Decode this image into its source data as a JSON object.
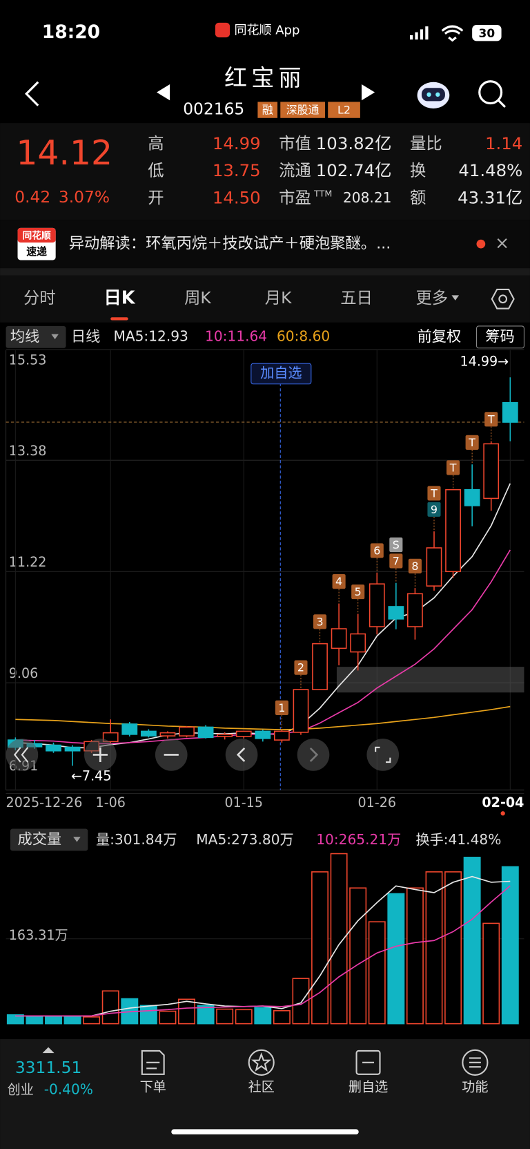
{
  "status": {
    "time": "18:20",
    "app": "同花顺 App",
    "battery": "30"
  },
  "header": {
    "name": "红宝丽",
    "code": "002165",
    "badges": [
      "融",
      "深股通",
      "L2"
    ]
  },
  "quote": {
    "price": "14.12",
    "change": "0.42",
    "percent": "3.07%",
    "fields": [
      {
        "label": "高",
        "value": "14.99",
        "color": "#f0462d"
      },
      {
        "label": "低",
        "value": "13.75",
        "color": "#f0462d"
      },
      {
        "label": "开",
        "value": "14.50",
        "color": "#f0462d"
      },
      {
        "label": "市值",
        "value": "103.82亿",
        "color": "#e8e8e8"
      },
      {
        "label": "流通",
        "value": "102.74亿",
        "color": "#e8e8e8"
      },
      {
        "label": "市盈",
        "sup": "TTM",
        "value": "208.21",
        "color": "#e8e8e8"
      },
      {
        "label": "量比",
        "value": "1.14",
        "color": "#f0462d"
      },
      {
        "label": "换",
        "value": "41.48%",
        "color": "#e8e8e8"
      },
      {
        "label": "额",
        "value": "43.31亿",
        "color": "#e8e8e8"
      }
    ]
  },
  "news": {
    "badge": [
      "同花顺",
      "速递"
    ],
    "text": "异动解读：环氧丙烷＋技改试产＋硬泡聚醚。..."
  },
  "tabs": {
    "items": [
      "分时",
      "日K",
      "周K",
      "月K",
      "五日",
      "更多"
    ],
    "active": 1
  },
  "kline_bar": {
    "ma_button": "均线",
    "period": "日线",
    "adjust": "前复权",
    "chips": "筹码"
  },
  "kline": {
    "type": "candlestick",
    "ylim": [
      6.91,
      15.53
    ],
    "yticks": [
      15.53,
      13.38,
      11.22,
      9.06,
      6.91
    ],
    "categories": [
      "2025-12-26",
      null,
      null,
      null,
      null,
      "1-06",
      null,
      null,
      null,
      null,
      null,
      null,
      "01-15",
      null,
      null,
      null,
      null,
      null,
      null,
      "01-26",
      null,
      null,
      null,
      null,
      null,
      null,
      "02-04"
    ],
    "high_label": "14.99→",
    "low_label": "←7.45",
    "add_watch": "加自选",
    "candles": [
      {
        "open": 7.95,
        "high": 8.0,
        "low": 7.75,
        "close": 7.81,
        "tags": []
      },
      {
        "open": 7.88,
        "high": 7.95,
        "low": 7.78,
        "close": 7.82,
        "tags": []
      },
      {
        "open": 7.85,
        "high": 7.9,
        "low": 7.7,
        "close": 7.74,
        "tags": []
      },
      {
        "open": 7.81,
        "high": 7.85,
        "low": 7.45,
        "close": 7.74,
        "tags": []
      },
      {
        "open": 7.74,
        "high": 7.95,
        "low": 7.7,
        "close": 7.92,
        "tags": []
      },
      {
        "open": 7.92,
        "high": 8.35,
        "low": 7.88,
        "close": 8.09,
        "tags": []
      },
      {
        "open": 8.26,
        "high": 8.3,
        "low": 8.02,
        "close": 8.06,
        "tags": []
      },
      {
        "open": 8.12,
        "high": 8.16,
        "low": 8.0,
        "close": 8.03,
        "tags": []
      },
      {
        "open": 8.03,
        "high": 8.12,
        "low": 7.98,
        "close": 8.09,
        "tags": []
      },
      {
        "open": 8.03,
        "high": 8.22,
        "low": 8.0,
        "close": 8.2,
        "tags": []
      },
      {
        "open": 8.2,
        "high": 8.24,
        "low": 7.98,
        "close": 8.0,
        "tags": []
      },
      {
        "open": 8.02,
        "high": 8.1,
        "low": 7.96,
        "close": 8.06,
        "tags": []
      },
      {
        "open": 8.02,
        "high": 8.12,
        "low": 7.98,
        "close": 8.12,
        "tags": []
      },
      {
        "open": 8.12,
        "high": 8.15,
        "low": 7.92,
        "close": 7.98,
        "tags": []
      },
      {
        "open": 7.95,
        "high": 8.15,
        "low": 7.9,
        "close": 8.12,
        "tags": [
          "1"
        ]
      },
      {
        "open": 8.1,
        "high": 8.93,
        "low": 8.05,
        "close": 8.93,
        "tags": [
          "2"
        ]
      },
      {
        "open": 8.93,
        "high": 9.82,
        "low": 8.93,
        "close": 9.82,
        "tags": [
          "3"
        ]
      },
      {
        "open": 9.73,
        "high": 10.6,
        "low": 9.4,
        "close": 10.11,
        "tags": [
          "4"
        ]
      },
      {
        "open": 9.66,
        "high": 10.4,
        "low": 9.3,
        "close": 10.01,
        "tags": [
          "5"
        ]
      },
      {
        "open": 10.15,
        "high": 11.2,
        "low": 10.0,
        "close": 10.98,
        "tags": [
          "6"
        ]
      },
      {
        "open": 10.54,
        "high": 11.0,
        "low": 10.1,
        "close": 10.3,
        "tags": [
          "7",
          "S"
        ]
      },
      {
        "open": 10.15,
        "high": 10.9,
        "low": 9.9,
        "close": 10.79,
        "tags": [
          "8"
        ]
      },
      {
        "open": 10.94,
        "high": 12.0,
        "low": 10.85,
        "close": 11.68,
        "tags": [
          "9",
          "T"
        ]
      },
      {
        "open": 11.22,
        "high": 12.81,
        "low": 11.1,
        "close": 12.81,
        "tags": [
          "T"
        ]
      },
      {
        "open": 12.81,
        "high": 13.3,
        "low": 12.1,
        "close": 12.5,
        "tags": [
          "T"
        ]
      },
      {
        "open": 12.64,
        "high": 13.75,
        "low": 12.4,
        "close": 13.7,
        "tags": [
          "T"
        ]
      },
      {
        "open": 14.5,
        "high": 14.99,
        "low": 13.75,
        "close": 14.12,
        "tags": []
      }
    ],
    "series": [
      {
        "label": "MA5:12.93",
        "color": "#e6e6e6",
        "values": [
          7.9,
          7.88,
          7.85,
          7.8,
          7.8,
          7.86,
          7.9,
          7.97,
          8.05,
          8.09,
          8.08,
          8.07,
          8.09,
          8.07,
          8.06,
          8.24,
          8.57,
          9.0,
          9.4,
          9.97,
          10.32,
          10.43,
          10.71,
          11.13,
          11.51,
          12.11,
          12.93
        ]
      },
      {
        "label": "10:11.64",
        "color": "#e83aa8",
        "values": [
          7.95,
          7.94,
          7.93,
          7.9,
          7.88,
          7.88,
          7.9,
          7.92,
          7.95,
          7.98,
          8.0,
          8.03,
          8.06,
          8.06,
          8.08,
          8.12,
          8.28,
          8.48,
          8.68,
          8.96,
          9.19,
          9.42,
          9.72,
          10.1,
          10.48,
          11.02,
          11.64
        ]
      },
      {
        "label": "60:8.60",
        "color": "#e8a21a",
        "values": [
          8.35,
          8.34,
          8.33,
          8.31,
          8.29,
          8.27,
          8.26,
          8.24,
          8.22,
          8.21,
          8.2,
          8.18,
          8.17,
          8.16,
          8.15,
          8.16,
          8.18,
          8.21,
          8.24,
          8.27,
          8.31,
          8.35,
          8.39,
          8.44,
          8.49,
          8.54,
          8.6
        ]
      }
    ]
  },
  "volume": {
    "type": "bar",
    "button": "成交量",
    "ylim": [
      0,
      334
    ],
    "yticks": [
      {
        "value": 163.31,
        "label": "163.31万"
      }
    ],
    "legend": [
      "量:301.84万",
      "MA5:273.80万",
      "10:265.21万",
      "换手:41.48%"
    ],
    "values": [
      17,
      14,
      13,
      13,
      13,
      63,
      48,
      35,
      24,
      47,
      35,
      28,
      27,
      31,
      25,
      87,
      292,
      327,
      261,
      196,
      250,
      261,
      292,
      292,
      320,
      193,
      301.84
    ],
    "series": [
      {
        "color": "#e6e6e6",
        "values": [
          15,
          15,
          15,
          15,
          15,
          24,
          30,
          34,
          37,
          43,
          38,
          34,
          33,
          34,
          29,
          40,
          92,
          152,
          198,
          233,
          265,
          258,
          252,
          272,
          283,
          272,
          273.8
        ]
      },
      {
        "color": "#e83aa8",
        "values": [
          15,
          15,
          15,
          15,
          15,
          20,
          23,
          25,
          27,
          30,
          31,
          32,
          33,
          34,
          33,
          37,
          60,
          90,
          114,
          136,
          149,
          156,
          160,
          177,
          201,
          234,
          265.21
        ]
      }
    ]
  },
  "bottom": {
    "index_value": "3311.51",
    "index_name": "创业",
    "index_change": "-0.40%",
    "nav": [
      "下单",
      "社区",
      "删自选",
      "功能"
    ]
  }
}
